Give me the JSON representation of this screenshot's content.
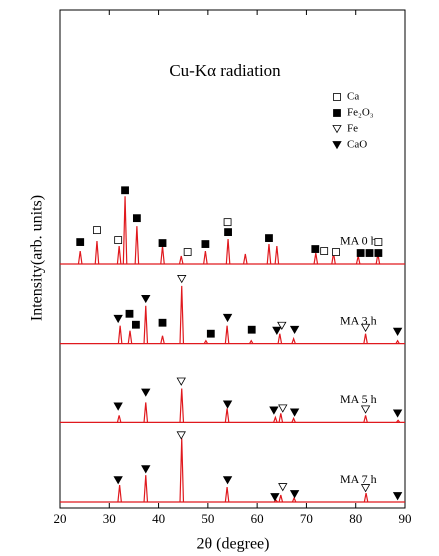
{
  "chart_data": {
    "type": "xrd",
    "title": "Cu-Kα radiation",
    "xlabel": "2θ (degree)",
    "ylabel": "Intensity(arb. units)",
    "xlim": [
      20,
      90
    ],
    "xticks": [
      20,
      30,
      40,
      50,
      60,
      70,
      80,
      90
    ],
    "ylim": [
      0,
      500
    ],
    "series": [
      {
        "name": "MA 0 h",
        "color": "#e0191e",
        "baseline": 245,
        "x": [
          24.1,
          27.5,
          32,
          33.2,
          35.6,
          40.8,
          44.6,
          49.5,
          54.1,
          57.6,
          62.4,
          64,
          71.9,
          75.5,
          80.5,
          84.5
        ],
        "values": [
          258,
          268,
          263,
          313,
          283,
          263,
          253,
          258,
          270,
          255,
          265,
          263,
          256,
          256,
          253,
          255
        ]
      },
      {
        "name": "MA 3 h",
        "color": "#e0191e",
        "baseline": 165,
        "x": [
          32.2,
          34.2,
          37.4,
          40.8,
          44.7,
          49.6,
          53.9,
          58.8,
          64.6,
          67.4,
          82,
          88.5
        ],
        "values": [
          183,
          178,
          203,
          173,
          223,
          168,
          183,
          168,
          175,
          170,
          175,
          168
        ]
      },
      {
        "name": "MA 5 h",
        "color": "#e0191e",
        "baseline": 86,
        "x": [
          32,
          37.4,
          44.7,
          53.9,
          63.7,
          64.8,
          67.4,
          82,
          88.6
        ],
        "values": [
          93,
          106,
          120,
          100,
          91,
          95,
          90,
          93,
          88
        ]
      },
      {
        "name": "MA 7 h",
        "color": "#e0191e",
        "baseline": 6,
        "x": [
          32.1,
          37.4,
          44.7,
          53.9,
          63.8,
          64.8,
          67.5,
          82.1
        ],
        "values": [
          23,
          33,
          70,
          21,
          8,
          13,
          10,
          15
        ]
      }
    ],
    "phases": [
      {
        "name": "Ca",
        "symbol": "square",
        "filled": false,
        "markers": [
          [
            27.5,
            279
          ],
          [
            31.8,
            269
          ],
          [
            45.9,
            257
          ],
          [
            54,
            287
          ],
          [
            73.6,
            258
          ],
          [
            76,
            257
          ],
          [
            84.6,
            267
          ]
        ]
      },
      {
        "name": "Fe₂O₃",
        "symbol": "square",
        "filled": true,
        "markers": [
          [
            24.1,
            267
          ],
          [
            33.2,
            319
          ],
          [
            35.6,
            291
          ],
          [
            40.8,
            266
          ],
          [
            49.5,
            265
          ],
          [
            54.1,
            277
          ],
          [
            62.4,
            271
          ],
          [
            71.8,
            260
          ],
          [
            81,
            256
          ],
          [
            82.8,
            256
          ],
          [
            84.6,
            256
          ],
          [
            34.1,
            195
          ],
          [
            35.4,
            184
          ],
          [
            40.8,
            186
          ],
          [
            50.6,
            175
          ],
          [
            58.9,
            179
          ]
        ]
      },
      {
        "name": "Fe",
        "symbol": "triangle",
        "filled": false,
        "markers": [
          [
            44.7,
            230
          ],
          [
            65,
            183
          ],
          [
            82,
            181
          ],
          [
            44.6,
            127
          ],
          [
            65.2,
            100
          ],
          [
            82,
            99
          ],
          [
            44.6,
            73
          ],
          [
            65.2,
            21
          ],
          [
            82,
            20
          ]
        ]
      },
      {
        "name": "CaO",
        "symbol": "triangle",
        "filled": true,
        "markers": [
          [
            31.8,
            190
          ],
          [
            37.4,
            210
          ],
          [
            54,
            191
          ],
          [
            64,
            178
          ],
          [
            67.6,
            179
          ],
          [
            88.5,
            177
          ],
          [
            31.8,
            102
          ],
          [
            37.4,
            116
          ],
          [
            54,
            104
          ],
          [
            63.4,
            98
          ],
          [
            67.6,
            96
          ],
          [
            88.5,
            95
          ],
          [
            31.8,
            28
          ],
          [
            37.4,
            39
          ],
          [
            54,
            28
          ],
          [
            63.6,
            11
          ],
          [
            67.6,
            14
          ],
          [
            88.5,
            12
          ]
        ]
      }
    ]
  }
}
